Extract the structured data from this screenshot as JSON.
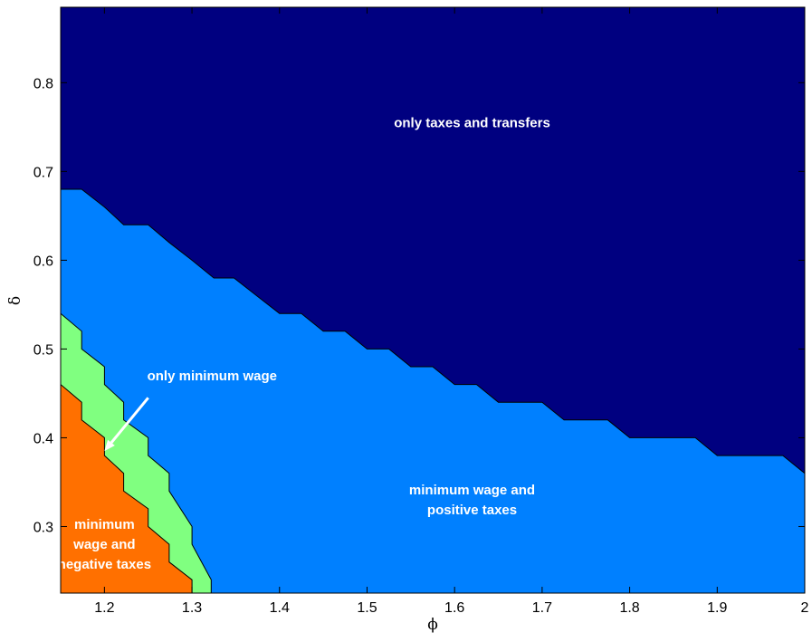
{
  "chart_data": {
    "type": "area",
    "title": "",
    "xlabel": "ϕ",
    "ylabel": "δ",
    "xlim": [
      1.15,
      2.0
    ],
    "ylim": [
      0.225,
      0.885
    ],
    "xticks": [
      1.2,
      1.3,
      1.4,
      1.5,
      1.6,
      1.7,
      1.8,
      1.9,
      2
    ],
    "xtick_labels": [
      "1.2",
      "1.3",
      "1.4",
      "1.5",
      "1.6",
      "1.7",
      "1.8",
      "1.9",
      "2"
    ],
    "yticks": [
      0.3,
      0.4,
      0.5,
      0.6,
      0.7,
      0.8
    ],
    "ytick_labels": [
      "0.3",
      "0.4",
      "0.5",
      "0.6",
      "0.7",
      "0.8"
    ],
    "grid": false,
    "regions": [
      {
        "id": "taxes-transfers",
        "color": "#000080",
        "label_lines": [
          "only taxes and transfers"
        ],
        "label_at": [
          1.62,
          0.755
        ]
      },
      {
        "id": "mw-positive",
        "color": "#0080ff",
        "label_lines": [
          "minimum wage and",
          "positive taxes"
        ],
        "label_at": [
          1.62,
          0.33
        ]
      },
      {
        "id": "only-mw",
        "color": "#80ff80",
        "label_lines": [
          "only minimum wage"
        ],
        "label_at": [
          1.323,
          0.47
        ]
      },
      {
        "id": "mw-negative",
        "color": "#ff7000",
        "label_lines": [
          "minimum",
          "wage and",
          "negative taxes"
        ],
        "label_at": [
          1.2,
          0.28
        ]
      }
    ],
    "boundaries": {
      "upper": [
        [
          1.15,
          0.68
        ],
        [
          1.174,
          0.68
        ],
        [
          1.2,
          0.66
        ],
        [
          1.222,
          0.64
        ],
        [
          1.25,
          0.64
        ],
        [
          1.274,
          0.62
        ],
        [
          1.3,
          0.6
        ],
        [
          1.325,
          0.58
        ],
        [
          1.348,
          0.58
        ],
        [
          1.374,
          0.56
        ],
        [
          1.4,
          0.54
        ],
        [
          1.425,
          0.54
        ],
        [
          1.45,
          0.52
        ],
        [
          1.475,
          0.52
        ],
        [
          1.5,
          0.5
        ],
        [
          1.525,
          0.5
        ],
        [
          1.55,
          0.48
        ],
        [
          1.575,
          0.48
        ],
        [
          1.6,
          0.46
        ],
        [
          1.625,
          0.46
        ],
        [
          1.65,
          0.44
        ],
        [
          1.7,
          0.44
        ],
        [
          1.725,
          0.42
        ],
        [
          1.775,
          0.42
        ],
        [
          1.8,
          0.4
        ],
        [
          1.875,
          0.4
        ],
        [
          1.9,
          0.38
        ],
        [
          1.975,
          0.38
        ],
        [
          2.0,
          0.36
        ]
      ],
      "middle": [
        [
          1.15,
          0.54
        ],
        [
          1.174,
          0.52
        ],
        [
          1.174,
          0.5
        ],
        [
          1.2,
          0.48
        ],
        [
          1.2,
          0.46
        ],
        [
          1.222,
          0.44
        ],
        [
          1.222,
          0.42
        ],
        [
          1.25,
          0.4
        ],
        [
          1.25,
          0.38
        ],
        [
          1.274,
          0.36
        ],
        [
          1.274,
          0.34
        ],
        [
          1.3,
          0.3
        ],
        [
          1.3,
          0.28
        ],
        [
          1.322,
          0.24
        ],
        [
          1.322,
          0.225
        ]
      ],
      "lower": [
        [
          1.15,
          0.46
        ],
        [
          1.174,
          0.44
        ],
        [
          1.174,
          0.42
        ],
        [
          1.2,
          0.4
        ],
        [
          1.2,
          0.38
        ],
        [
          1.222,
          0.36
        ],
        [
          1.222,
          0.34
        ],
        [
          1.25,
          0.32
        ],
        [
          1.25,
          0.3
        ],
        [
          1.274,
          0.28
        ],
        [
          1.274,
          0.26
        ],
        [
          1.3,
          0.24
        ],
        [
          1.3,
          0.225
        ]
      ]
    },
    "annotations": [
      {
        "type": "arrow",
        "from": [
          1.25,
          0.445
        ],
        "to": [
          1.2,
          0.385
        ],
        "color": "#ffffff"
      }
    ]
  }
}
